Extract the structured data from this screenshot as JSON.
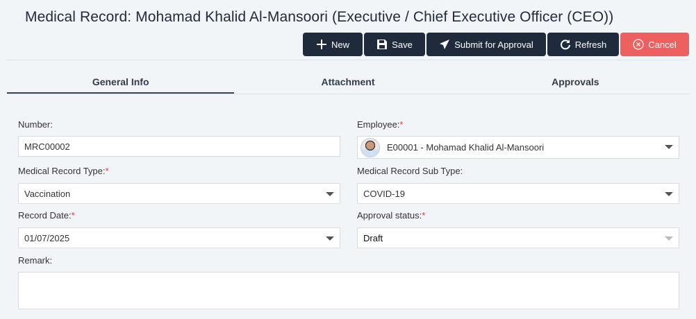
{
  "title": "Medical Record: Mohamad Khalid Al-Mansoori (Executive / Chief Executive Officer (CEO))",
  "toolbar": {
    "new": "New",
    "save": "Save",
    "submit": "Submit for Approval",
    "refresh": "Refresh",
    "cancel": "Cancel"
  },
  "colors": {
    "button": "#1f2a3c",
    "cancel": "#ee5f5f",
    "required": "#e53935"
  },
  "tabs": [
    {
      "label": "General Info",
      "active": true
    },
    {
      "label": "Attachment"
    },
    {
      "label": "Approvals"
    }
  ],
  "form": {
    "number": {
      "label": "Number:",
      "value": "MRC00002"
    },
    "employee": {
      "label": "Employee:",
      "required": "*",
      "value": "E00001 - Mohamad Khalid Al-Mansoori"
    },
    "type": {
      "label": "Medical Record Type:",
      "required": "*",
      "value": "Vaccination"
    },
    "subtype": {
      "label": "Medical Record Sub Type:",
      "value": "COVID-19"
    },
    "date": {
      "label": "Record Date:",
      "required": "*",
      "value": "01/07/2025"
    },
    "status": {
      "label": "Approval status:",
      "required": "*",
      "value": "Draft"
    },
    "remark": {
      "label": "Remark:",
      "value": ""
    }
  }
}
